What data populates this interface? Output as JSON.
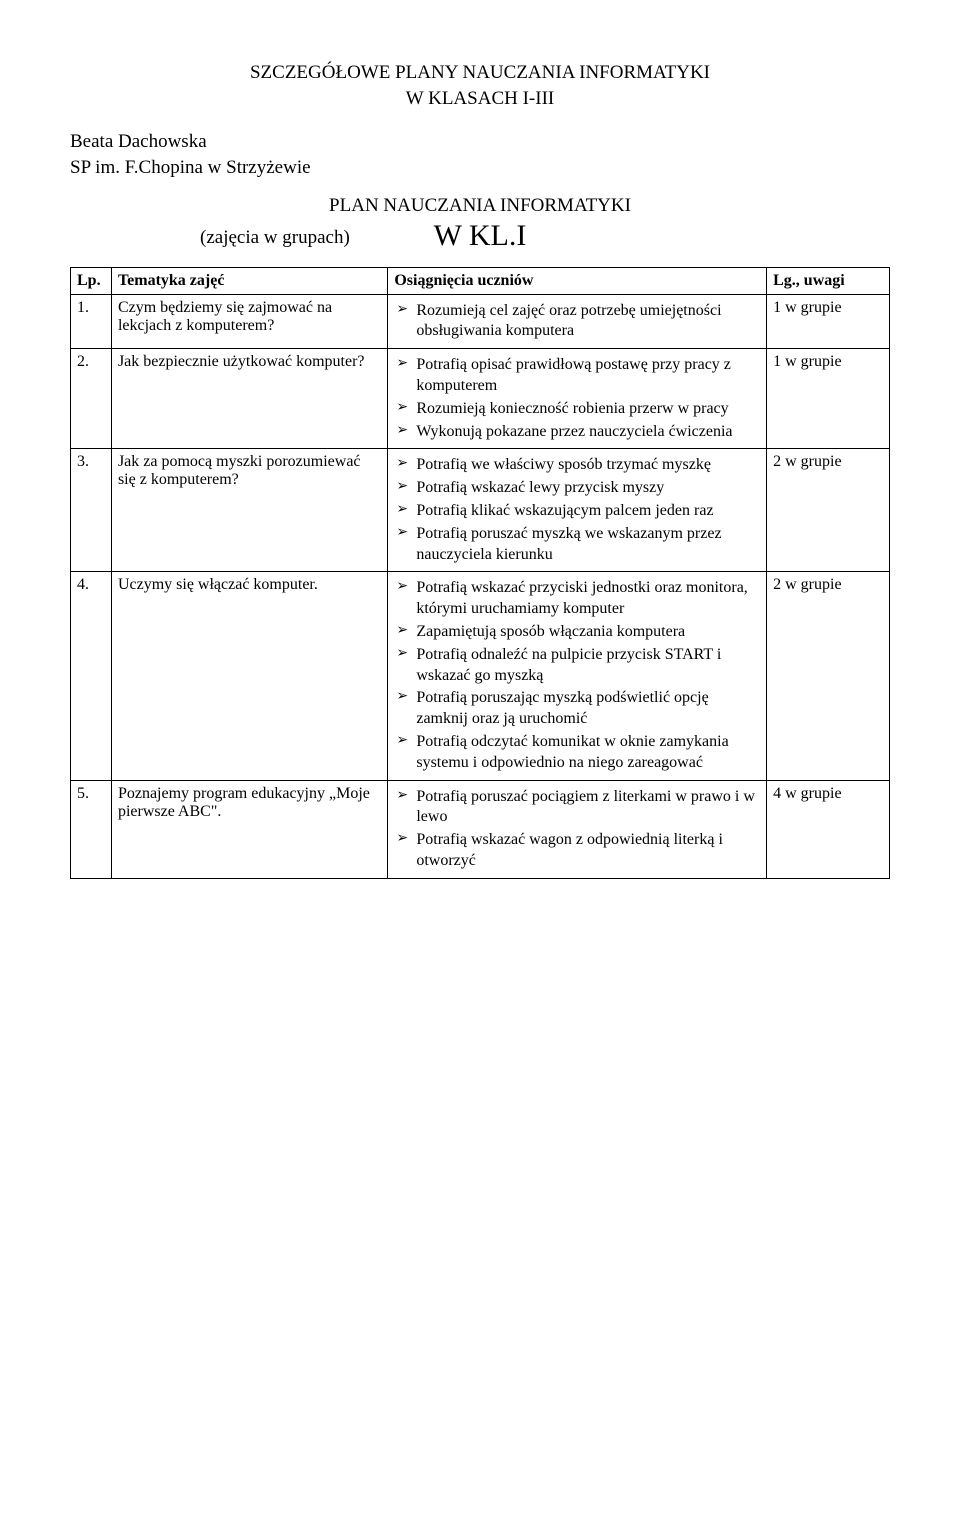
{
  "header": {
    "title_line1": "SZCZEGÓŁOWE PLANY NAUCZANIA INFORMATYKI",
    "title_line2": "W KLASACH I-III"
  },
  "author": {
    "name": "Beata Dachowska",
    "school": "SP im. F.Chopina w Strzyżewie"
  },
  "plan": {
    "title": "PLAN NAUCZANIA INFORMATYKI",
    "class": "W KL.I",
    "note": "(zajęcia w grupach)"
  },
  "table": {
    "headers": {
      "lp": "Lp.",
      "topic": "Tematyka zajęć",
      "outcomes": "Osiągnięcia uczniów",
      "notes": "Lg., uwagi"
    },
    "rows": [
      {
        "lp": "1.",
        "topic": "Czym będziemy się zajmować na lekcjach z komputerem?",
        "outcomes": [
          "Rozumieją cel zajęć oraz potrzebę umiejętności obsługiwania komputera"
        ],
        "notes": "1 w grupie"
      },
      {
        "lp": "2.",
        "topic": "Jak bezpiecznie użytkować komputer?",
        "outcomes": [
          "Potrafią opisać prawidłową postawę przy pracy z komputerem",
          "Rozumieją konieczność robienia przerw w pracy",
          "Wykonują pokazane przez nauczyciela ćwiczenia"
        ],
        "notes": "1 w grupie"
      },
      {
        "lp": "3.",
        "topic": "Jak za pomocą myszki porozumiewać się z komputerem?",
        "outcomes": [
          "Potrafią we właściwy sposób trzymać myszkę",
          "Potrafią wskazać lewy przycisk myszy",
          "Potrafią klikać wskazującym palcem jeden raz",
          "Potrafią poruszać myszką we wskazanym przez nauczyciela kierunku"
        ],
        "notes": "2 w grupie"
      },
      {
        "lp": "4.",
        "topic": "Uczymy się włączać komputer.",
        "outcomes": [
          "Potrafią wskazać przyciski jednostki oraz monitora, którymi uruchamiamy komputer",
          "Zapamiętują sposób włączania komputera",
          "Potrafią odnaleźć na pulpicie przycisk START i wskazać go myszką",
          "Potrafią poruszając myszką podświetlić opcję zamknij oraz ją uruchomić",
          "Potrafią odczytać komunikat w oknie zamykania systemu i odpowiednio na niego zareagować"
        ],
        "notes": "2 w grupie"
      },
      {
        "lp": "5.",
        "topic": "Poznajemy program edukacyjny „Moje pierwsze ABC\".",
        "outcomes": [
          "Potrafią poruszać pociągiem z literkami w prawo i w lewo",
          "Potrafią wskazać wagon z odpowiednią literką i otworzyć"
        ],
        "notes": "4 w grupie"
      }
    ]
  }
}
